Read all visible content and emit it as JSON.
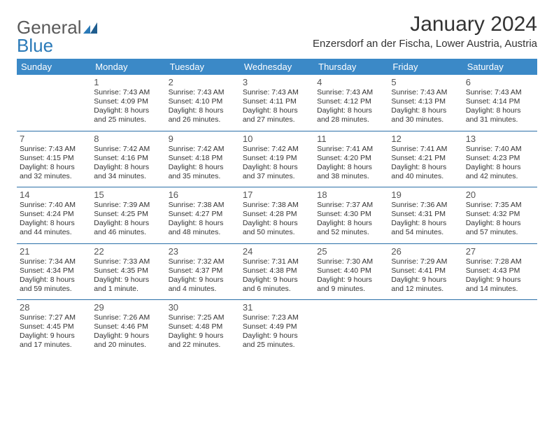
{
  "brand": {
    "name1": "General",
    "name2": "Blue"
  },
  "title": "January 2024",
  "location": "Enzersdorf an der Fischa, Lower Austria, Austria",
  "weekdays": [
    "Sunday",
    "Monday",
    "Tuesday",
    "Wednesday",
    "Thursday",
    "Friday",
    "Saturday"
  ],
  "colors": {
    "header_bg": "#3b89c7",
    "header_text": "#ffffff",
    "divider": "#2a6fa8",
    "text": "#333333",
    "daynum": "#555555",
    "brand_gray": "#5a5a5a",
    "brand_blue": "#2a7ab8",
    "background": "#ffffff"
  },
  "weeks": [
    [
      {
        "day": "",
        "sunrise": "",
        "sunset": "",
        "daylight1": "",
        "daylight2": ""
      },
      {
        "day": "1",
        "sunrise": "Sunrise: 7:43 AM",
        "sunset": "Sunset: 4:09 PM",
        "daylight1": "Daylight: 8 hours",
        "daylight2": "and 25 minutes."
      },
      {
        "day": "2",
        "sunrise": "Sunrise: 7:43 AM",
        "sunset": "Sunset: 4:10 PM",
        "daylight1": "Daylight: 8 hours",
        "daylight2": "and 26 minutes."
      },
      {
        "day": "3",
        "sunrise": "Sunrise: 7:43 AM",
        "sunset": "Sunset: 4:11 PM",
        "daylight1": "Daylight: 8 hours",
        "daylight2": "and 27 minutes."
      },
      {
        "day": "4",
        "sunrise": "Sunrise: 7:43 AM",
        "sunset": "Sunset: 4:12 PM",
        "daylight1": "Daylight: 8 hours",
        "daylight2": "and 28 minutes."
      },
      {
        "day": "5",
        "sunrise": "Sunrise: 7:43 AM",
        "sunset": "Sunset: 4:13 PM",
        "daylight1": "Daylight: 8 hours",
        "daylight2": "and 30 minutes."
      },
      {
        "day": "6",
        "sunrise": "Sunrise: 7:43 AM",
        "sunset": "Sunset: 4:14 PM",
        "daylight1": "Daylight: 8 hours",
        "daylight2": "and 31 minutes."
      }
    ],
    [
      {
        "day": "7",
        "sunrise": "Sunrise: 7:43 AM",
        "sunset": "Sunset: 4:15 PM",
        "daylight1": "Daylight: 8 hours",
        "daylight2": "and 32 minutes."
      },
      {
        "day": "8",
        "sunrise": "Sunrise: 7:42 AM",
        "sunset": "Sunset: 4:16 PM",
        "daylight1": "Daylight: 8 hours",
        "daylight2": "and 34 minutes."
      },
      {
        "day": "9",
        "sunrise": "Sunrise: 7:42 AM",
        "sunset": "Sunset: 4:18 PM",
        "daylight1": "Daylight: 8 hours",
        "daylight2": "and 35 minutes."
      },
      {
        "day": "10",
        "sunrise": "Sunrise: 7:42 AM",
        "sunset": "Sunset: 4:19 PM",
        "daylight1": "Daylight: 8 hours",
        "daylight2": "and 37 minutes."
      },
      {
        "day": "11",
        "sunrise": "Sunrise: 7:41 AM",
        "sunset": "Sunset: 4:20 PM",
        "daylight1": "Daylight: 8 hours",
        "daylight2": "and 38 minutes."
      },
      {
        "day": "12",
        "sunrise": "Sunrise: 7:41 AM",
        "sunset": "Sunset: 4:21 PM",
        "daylight1": "Daylight: 8 hours",
        "daylight2": "and 40 minutes."
      },
      {
        "day": "13",
        "sunrise": "Sunrise: 7:40 AM",
        "sunset": "Sunset: 4:23 PM",
        "daylight1": "Daylight: 8 hours",
        "daylight2": "and 42 minutes."
      }
    ],
    [
      {
        "day": "14",
        "sunrise": "Sunrise: 7:40 AM",
        "sunset": "Sunset: 4:24 PM",
        "daylight1": "Daylight: 8 hours",
        "daylight2": "and 44 minutes."
      },
      {
        "day": "15",
        "sunrise": "Sunrise: 7:39 AM",
        "sunset": "Sunset: 4:25 PM",
        "daylight1": "Daylight: 8 hours",
        "daylight2": "and 46 minutes."
      },
      {
        "day": "16",
        "sunrise": "Sunrise: 7:38 AM",
        "sunset": "Sunset: 4:27 PM",
        "daylight1": "Daylight: 8 hours",
        "daylight2": "and 48 minutes."
      },
      {
        "day": "17",
        "sunrise": "Sunrise: 7:38 AM",
        "sunset": "Sunset: 4:28 PM",
        "daylight1": "Daylight: 8 hours",
        "daylight2": "and 50 minutes."
      },
      {
        "day": "18",
        "sunrise": "Sunrise: 7:37 AM",
        "sunset": "Sunset: 4:30 PM",
        "daylight1": "Daylight: 8 hours",
        "daylight2": "and 52 minutes."
      },
      {
        "day": "19",
        "sunrise": "Sunrise: 7:36 AM",
        "sunset": "Sunset: 4:31 PM",
        "daylight1": "Daylight: 8 hours",
        "daylight2": "and 54 minutes."
      },
      {
        "day": "20",
        "sunrise": "Sunrise: 7:35 AM",
        "sunset": "Sunset: 4:32 PM",
        "daylight1": "Daylight: 8 hours",
        "daylight2": "and 57 minutes."
      }
    ],
    [
      {
        "day": "21",
        "sunrise": "Sunrise: 7:34 AM",
        "sunset": "Sunset: 4:34 PM",
        "daylight1": "Daylight: 8 hours",
        "daylight2": "and 59 minutes."
      },
      {
        "day": "22",
        "sunrise": "Sunrise: 7:33 AM",
        "sunset": "Sunset: 4:35 PM",
        "daylight1": "Daylight: 9 hours",
        "daylight2": "and 1 minute."
      },
      {
        "day": "23",
        "sunrise": "Sunrise: 7:32 AM",
        "sunset": "Sunset: 4:37 PM",
        "daylight1": "Daylight: 9 hours",
        "daylight2": "and 4 minutes."
      },
      {
        "day": "24",
        "sunrise": "Sunrise: 7:31 AM",
        "sunset": "Sunset: 4:38 PM",
        "daylight1": "Daylight: 9 hours",
        "daylight2": "and 6 minutes."
      },
      {
        "day": "25",
        "sunrise": "Sunrise: 7:30 AM",
        "sunset": "Sunset: 4:40 PM",
        "daylight1": "Daylight: 9 hours",
        "daylight2": "and 9 minutes."
      },
      {
        "day": "26",
        "sunrise": "Sunrise: 7:29 AM",
        "sunset": "Sunset: 4:41 PM",
        "daylight1": "Daylight: 9 hours",
        "daylight2": "and 12 minutes."
      },
      {
        "day": "27",
        "sunrise": "Sunrise: 7:28 AM",
        "sunset": "Sunset: 4:43 PM",
        "daylight1": "Daylight: 9 hours",
        "daylight2": "and 14 minutes."
      }
    ],
    [
      {
        "day": "28",
        "sunrise": "Sunrise: 7:27 AM",
        "sunset": "Sunset: 4:45 PM",
        "daylight1": "Daylight: 9 hours",
        "daylight2": "and 17 minutes."
      },
      {
        "day": "29",
        "sunrise": "Sunrise: 7:26 AM",
        "sunset": "Sunset: 4:46 PM",
        "daylight1": "Daylight: 9 hours",
        "daylight2": "and 20 minutes."
      },
      {
        "day": "30",
        "sunrise": "Sunrise: 7:25 AM",
        "sunset": "Sunset: 4:48 PM",
        "daylight1": "Daylight: 9 hours",
        "daylight2": "and 22 minutes."
      },
      {
        "day": "31",
        "sunrise": "Sunrise: 7:23 AM",
        "sunset": "Sunset: 4:49 PM",
        "daylight1": "Daylight: 9 hours",
        "daylight2": "and 25 minutes."
      },
      {
        "day": "",
        "sunrise": "",
        "sunset": "",
        "daylight1": "",
        "daylight2": ""
      },
      {
        "day": "",
        "sunrise": "",
        "sunset": "",
        "daylight1": "",
        "daylight2": ""
      },
      {
        "day": "",
        "sunrise": "",
        "sunset": "",
        "daylight1": "",
        "daylight2": ""
      }
    ]
  ]
}
